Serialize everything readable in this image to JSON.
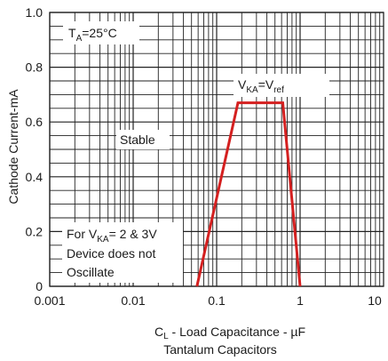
{
  "chart_data": {
    "type": "line",
    "x_scale": "log",
    "xlim": [
      0.001,
      10
    ],
    "ylim": [
      0,
      1.0
    ],
    "x_ticks": [
      "0.001",
      "0.01",
      "0.1",
      "1",
      "10"
    ],
    "y_ticks": [
      "0",
      "0.2",
      "0.4",
      "0.6",
      "0.8",
      "1.0"
    ],
    "grid": true,
    "ylabel": "Cathode Current-mA",
    "xlabel_prefix": "C",
    "xlabel_subscript": "L",
    "xlabel_rest": " - Load Capacitance - µF",
    "xlabel_line2": "Tantalum Capacitors",
    "series": [
      {
        "color": "#d42020",
        "x": [
          0.058,
          0.18,
          0.62,
          1.0
        ],
        "y": [
          0,
          0.67,
          0.67,
          0
        ]
      }
    ],
    "annotations": {
      "ta": {
        "main": "T",
        "sub": "A",
        "rest": "=25°C"
      },
      "vka": {
        "p1": "V",
        "s1": "KA",
        "p2": "=V",
        "s2": "ref"
      },
      "stable": "Stable",
      "osc_line1": {
        "p1": "For V",
        "s1": "KA",
        "p2": "= 2 & 3V"
      },
      "osc_line2": "Device does not",
      "osc_line3": "Oscillate"
    }
  }
}
